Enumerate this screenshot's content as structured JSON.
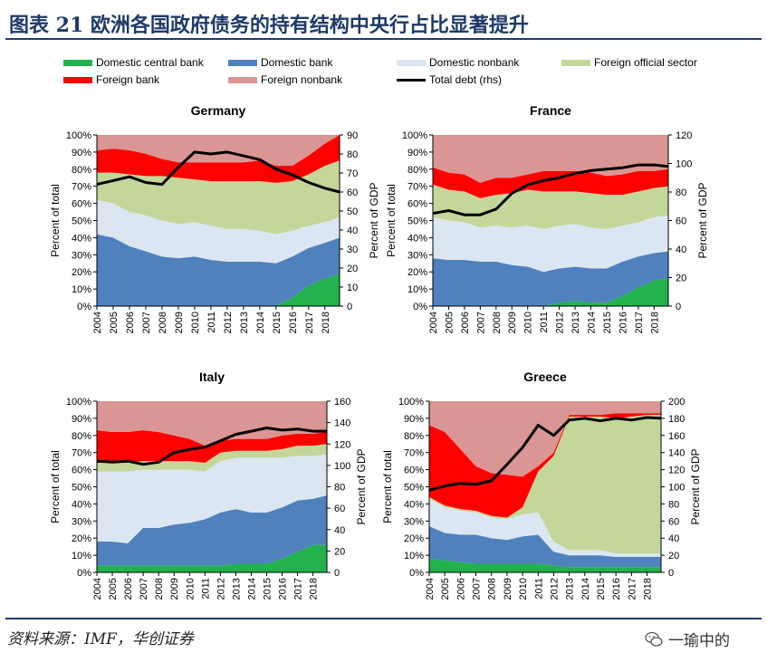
{
  "header": {
    "title": "图表 21   欧洲各国政府债务的持有结构中央行占比显著提升"
  },
  "source": {
    "text": "资料来源：IMF，华创证券"
  },
  "watermark": {
    "text": "一瑜中的",
    "icon": "wechat-icon"
  },
  "colors": {
    "Domestic central bank": "#22b14c",
    "Domestic bank": "#4f81bd",
    "Domestic nonbank": "#dce6f2",
    "Foreign official sector": "#c4d79b",
    "Foreign bank": "#ff0000",
    "Foreign nonbank": "#da9694",
    "Total debt (rhs)": "#000000",
    "header": "#1f3a68"
  },
  "legend": [
    "Domestic central bank",
    "Domestic bank",
    "Domestic nonbank",
    "Foreign official sector",
    "Foreign bank",
    "Foreign nonbank",
    "Total debt (rhs)"
  ],
  "chart_data": [
    {
      "type": "area",
      "title": "Germany",
      "ylabel": "Percent of total",
      "y2label": "Percent of GDP",
      "ylim": [
        0,
        100
      ],
      "y2lim": [
        0,
        90
      ],
      "yticks": [
        "0%",
        "10%",
        "20%",
        "30%",
        "40%",
        "50%",
        "60%",
        "70%",
        "80%",
        "90%",
        "100%"
      ],
      "y2ticks": [
        "0",
        "10",
        "20",
        "30",
        "40",
        "50",
        "60",
        "70",
        "80",
        "90"
      ],
      "xticks": [
        "2004",
        "2005",
        "2006",
        "2007",
        "2008",
        "2009",
        "2010",
        "2011",
        "2012",
        "2013",
        "2014",
        "2015",
        "2016",
        "2017",
        "2018"
      ],
      "x": [
        2004,
        2005,
        2006,
        2007,
        2008,
        2009,
        2010,
        2011,
        2012,
        2013,
        2014,
        2015,
        2016,
        2017,
        2018,
        2018.9
      ],
      "series": [
        {
          "name": "Domestic central bank",
          "values": [
            0,
            0,
            0,
            0,
            0,
            0,
            0,
            0,
            0,
            0,
            0,
            0,
            5,
            12,
            16,
            19
          ]
        },
        {
          "name": "Domestic bank",
          "values": [
            42,
            40,
            35,
            32,
            29,
            28,
            29,
            27,
            26,
            26,
            26,
            25,
            24,
            22,
            21,
            21
          ]
        },
        {
          "name": "Domestic nonbank",
          "values": [
            20,
            20,
            20,
            21,
            21,
            20,
            20,
            20,
            19,
            19,
            18,
            17,
            15,
            13,
            12,
            12
          ]
        },
        {
          "name": "Foreign official sector",
          "values": [
            16,
            18,
            22,
            23,
            26,
            27,
            25,
            26,
            28,
            28,
            29,
            30,
            29,
            30,
            33,
            33
          ]
        },
        {
          "name": "Foreign bank",
          "values": [
            13,
            14,
            14,
            13,
            10,
            9,
            10,
            11,
            11,
            11,
            12,
            10,
            9,
            11,
            13,
            15
          ]
        },
        {
          "name": "Foreign nonbank",
          "values": [
            9,
            8,
            9,
            11,
            14,
            16,
            16,
            16,
            16,
            16,
            15,
            18,
            18,
            12,
            5,
            0
          ]
        }
      ],
      "line": {
        "name": "Total debt (rhs)",
        "values": [
          64,
          66,
          68,
          65,
          64,
          73,
          81,
          80,
          81,
          79,
          77,
          72,
          69,
          65,
          62,
          60
        ]
      }
    },
    {
      "type": "area",
      "title": "France",
      "ylabel": "Percent of total",
      "y2label": "Percent of GDP",
      "ylim": [
        0,
        100
      ],
      "y2lim": [
        0,
        120
      ],
      "yticks": [
        "0%",
        "10%",
        "20%",
        "30%",
        "40%",
        "50%",
        "60%",
        "70%",
        "80%",
        "90%",
        "100%"
      ],
      "y2ticks": [
        "0",
        "20",
        "40",
        "60",
        "80",
        "100",
        "120"
      ],
      "xticks": [
        "2004",
        "2005",
        "2006",
        "2007",
        "2008",
        "2009",
        "2010",
        "2011",
        "2012",
        "2013",
        "2014",
        "2015",
        "2016",
        "2017",
        "2018"
      ],
      "x": [
        2004,
        2005,
        2006,
        2007,
        2008,
        2009,
        2010,
        2011,
        2012,
        2013,
        2014,
        2015,
        2016,
        2017,
        2018,
        2018.9
      ],
      "series": [
        {
          "name": "Domestic central bank",
          "values": [
            0,
            0,
            0,
            0,
            0,
            0,
            0,
            0,
            2,
            3,
            2,
            2,
            6,
            11,
            15,
            16
          ]
        },
        {
          "name": "Domestic bank",
          "values": [
            28,
            27,
            27,
            26,
            26,
            24,
            23,
            20,
            20,
            20,
            20,
            20,
            20,
            18,
            16,
            16
          ]
        },
        {
          "name": "Domestic nonbank",
          "values": [
            24,
            23,
            22,
            20,
            21,
            22,
            24,
            25,
            25,
            25,
            24,
            23,
            21,
            20,
            21,
            21
          ]
        },
        {
          "name": "Foreign official sector",
          "values": [
            19,
            18,
            18,
            17,
            18,
            20,
            21,
            22,
            20,
            19,
            20,
            20,
            18,
            18,
            17,
            17
          ]
        },
        {
          "name": "Foreign bank",
          "values": [
            10,
            10,
            10,
            9,
            10,
            9,
            9,
            12,
            12,
            12,
            12,
            11,
            12,
            12,
            10,
            10
          ]
        },
        {
          "name": "Foreign nonbank",
          "values": [
            19,
            22,
            23,
            28,
            25,
            25,
            23,
            21,
            21,
            21,
            22,
            24,
            23,
            21,
            21,
            20
          ]
        }
      ],
      "line": {
        "name": "Total debt (rhs)",
        "values": [
          65,
          67,
          64,
          64,
          68,
          79,
          85,
          88,
          90,
          93,
          95,
          96,
          97,
          99,
          99,
          98
        ]
      }
    },
    {
      "type": "area",
      "title": "Italy",
      "ylabel": "Percent of total",
      "y2label": "Percent of GDP",
      "ylim": [
        0,
        100
      ],
      "y2lim": [
        0,
        160
      ],
      "yticks": [
        "0%",
        "10%",
        "20%",
        "30%",
        "40%",
        "50%",
        "60%",
        "70%",
        "80%",
        "90%",
        "100%"
      ],
      "y2ticks": [
        "0",
        "20",
        "40",
        "60",
        "80",
        "100",
        "120",
        "140",
        "160"
      ],
      "xticks": [
        "2004",
        "2005",
        "2006",
        "2007",
        "2008",
        "2009",
        "2010",
        "2011",
        "2012",
        "2013",
        "2014",
        "2015",
        "2016",
        "2017",
        "2018"
      ],
      "x": [
        2004,
        2005,
        2006,
        2007,
        2008,
        2009,
        2010,
        2011,
        2012,
        2013,
        2014,
        2015,
        2016,
        2017,
        2018,
        2018.9
      ],
      "series": [
        {
          "name": "Domestic central bank",
          "values": [
            4,
            4,
            4,
            4,
            4,
            4,
            4,
            4,
            4,
            5,
            5,
            5,
            8,
            12,
            16,
            16
          ]
        },
        {
          "name": "Domestic bank",
          "values": [
            14,
            14,
            13,
            22,
            22,
            24,
            25,
            27,
            31,
            32,
            30,
            30,
            30,
            30,
            27,
            29
          ]
        },
        {
          "name": "Domestic nonbank",
          "values": [
            41,
            41,
            42,
            34,
            34,
            32,
            31,
            28,
            30,
            30,
            32,
            32,
            29,
            26,
            25,
            24
          ]
        },
        {
          "name": "Foreign official sector",
          "values": [
            5,
            5,
            5,
            5,
            5,
            5,
            5,
            5,
            5,
            4,
            4,
            4,
            5,
            6,
            6,
            6
          ]
        },
        {
          "name": "Foreign bank",
          "values": [
            19,
            18,
            18,
            18,
            17,
            15,
            13,
            10,
            7,
            7,
            7,
            7,
            8,
            7,
            7,
            7
          ]
        },
        {
          "name": "Foreign nonbank",
          "values": [
            17,
            18,
            18,
            17,
            18,
            20,
            22,
            26,
            23,
            22,
            22,
            22,
            20,
            19,
            19,
            18
          ]
        }
      ],
      "line": {
        "name": "Total debt (rhs)",
        "values": [
          104,
          103,
          104,
          101,
          103,
          112,
          115,
          117,
          123,
          129,
          132,
          135,
          133,
          134,
          132,
          132
        ]
      }
    },
    {
      "type": "area",
      "title": "Greece",
      "ylabel": "Percent of total",
      "y2label": "Percent of GDP",
      "ylim": [
        0,
        100
      ],
      "y2lim": [
        0,
        200
      ],
      "yticks": [
        "0%",
        "10%",
        "20%",
        "30%",
        "40%",
        "50%",
        "60%",
        "70%",
        "80%",
        "90%",
        "100%"
      ],
      "y2ticks": [
        "0",
        "20",
        "40",
        "60",
        "80",
        "100",
        "120",
        "140",
        "160",
        "180",
        "200"
      ],
      "xticks": [
        "2004",
        "2005",
        "2006",
        "2007",
        "2008",
        "2009",
        "2010",
        "2011",
        "2012",
        "2013",
        "2014",
        "2015",
        "2016",
        "2017",
        "2018"
      ],
      "x": [
        2004,
        2005,
        2006,
        2007,
        2008,
        2009,
        2010,
        2011,
        2012,
        2013,
        2014,
        2015,
        2016,
        2017,
        2018,
        2018.9
      ],
      "series": [
        {
          "name": "Domestic central bank",
          "values": [
            8,
            7,
            6,
            5,
            5,
            5,
            5,
            5,
            4,
            3,
            3,
            3,
            3,
            3,
            3,
            3
          ]
        },
        {
          "name": "Domestic bank",
          "values": [
            19,
            16,
            16,
            17,
            15,
            14,
            16,
            17,
            8,
            7,
            7,
            7,
            6,
            6,
            6,
            6
          ]
        },
        {
          "name": "Domestic nonbank",
          "values": [
            16,
            15,
            14,
            13,
            12,
            12,
            13,
            13,
            6,
            3,
            3,
            3,
            2,
            2,
            2,
            2
          ]
        },
        {
          "name": "Foreign official sector",
          "values": [
            1,
            1,
            1,
            1,
            1,
            1,
            4,
            24,
            50,
            78,
            78,
            78,
            79,
            80,
            81,
            81
          ]
        },
        {
          "name": "Foreign bank",
          "values": [
            42,
            43,
            35,
            26,
            25,
            25,
            18,
            3,
            2,
            1,
            1,
            1,
            3,
            2,
            1,
            1
          ]
        },
        {
          "name": "Foreign nonbank",
          "values": [
            14,
            18,
            28,
            38,
            42,
            43,
            44,
            38,
            30,
            8,
            8,
            8,
            7,
            7,
            7,
            7
          ]
        }
      ],
      "line": {
        "name": "Total debt (rhs)",
        "values": [
          96,
          101,
          104,
          103,
          107,
          126,
          146,
          172,
          160,
          178,
          180,
          177,
          180,
          178,
          181,
          180
        ]
      }
    }
  ]
}
